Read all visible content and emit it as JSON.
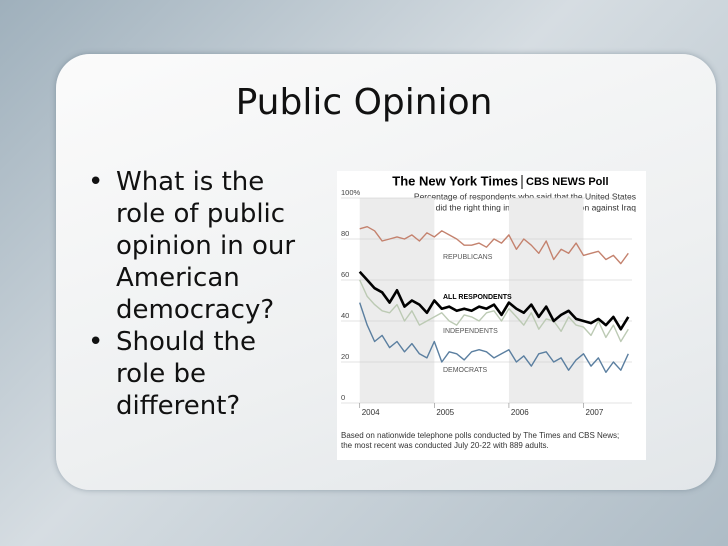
{
  "slide": {
    "title": "Public Opinion",
    "bullets": [
      "What is the role of public opinion in our American democracy?",
      "Should the role be different?"
    ]
  },
  "chart_data": {
    "type": "line",
    "brand": "The New York Times",
    "poll": "CBS NEWS Poll",
    "subtitle": [
      "Percentage of respondents who said that the United States",
      "did the right thing in taking military action against Iraq"
    ],
    "note": [
      "Based on nationwide telephone polls conducted by The Times and CBS News;",
      "the most recent was conducted July 20-22 with 889 adults."
    ],
    "x": [
      2004.0,
      2004.1,
      2004.2,
      2004.3,
      2004.4,
      2004.5,
      2004.6,
      2004.7,
      2004.8,
      2004.9,
      2005.0,
      2005.1,
      2005.2,
      2005.3,
      2005.4,
      2005.5,
      2005.6,
      2005.7,
      2005.8,
      2005.9,
      2006.0,
      2006.1,
      2006.2,
      2006.3,
      2006.4,
      2006.5,
      2006.6,
      2006.7,
      2006.8,
      2006.9,
      2007.0,
      2007.1,
      2007.2,
      2007.3,
      2007.4,
      2007.5,
      2007.6
    ],
    "xlim": [
      2003.95,
      2007.65
    ],
    "xticks": [
      2004,
      2005,
      2006,
      2007
    ],
    "ylim": [
      0,
      100
    ],
    "yticks": [
      {
        "value": 100,
        "label": "100%"
      },
      80,
      60,
      40,
      20,
      0
    ],
    "grid": true,
    "series": [
      {
        "name": "INDEPENDENTS",
        "color": "#bccab4",
        "values": [
          60,
          52,
          48,
          45,
          44,
          48,
          40,
          45,
          38,
          40,
          42,
          44,
          40,
          38,
          43,
          42,
          40,
          44,
          45,
          40,
          46,
          42,
          38,
          44,
          36,
          41,
          40,
          35,
          42,
          38,
          37,
          33,
          40,
          32,
          38,
          30,
          36
        ]
      },
      {
        "name": "DEMOCRATS",
        "color": "#5b7fa0",
        "values": [
          49,
          38,
          30,
          33,
          27,
          30,
          25,
          29,
          24,
          22,
          30,
          20,
          25,
          24,
          21,
          25,
          26,
          25,
          22,
          24,
          26,
          20,
          23,
          18,
          24,
          25,
          20,
          22,
          16,
          21,
          24,
          18,
          22,
          15,
          20,
          16,
          24
        ]
      },
      {
        "name": "REPUBLICANS",
        "color": "#c4826e",
        "values": [
          85,
          86,
          84,
          79,
          80,
          81,
          80,
          82,
          79,
          83,
          81,
          84,
          82,
          80,
          77,
          77,
          78,
          76,
          80,
          78,
          82,
          75,
          80,
          77,
          73,
          79,
          70,
          75,
          73,
          78,
          72,
          73,
          74,
          70,
          72,
          68,
          73
        ]
      },
      {
        "name": "ALL RESPONDENTS",
        "color": "#000000",
        "values": [
          64,
          60,
          56,
          54,
          49,
          55,
          47,
          50,
          48,
          44,
          50,
          46,
          47,
          45,
          46,
          45,
          47,
          46,
          48,
          43,
          49,
          46,
          44,
          48,
          42,
          47,
          40,
          43,
          45,
          41,
          40,
          39,
          41,
          38,
          42,
          36,
          42
        ]
      }
    ]
  }
}
